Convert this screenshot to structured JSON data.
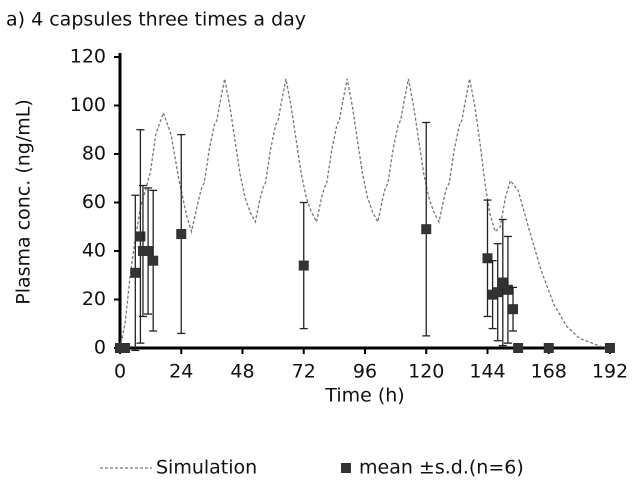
{
  "chart_data": {
    "type": "scatter",
    "title": "a) 4 capsules three times a day",
    "x_label": "Time (h)",
    "y_label": "Plasma conc. (ng/mL)",
    "xlim": [
      0,
      192
    ],
    "xticks": [
      0,
      24,
      48,
      72,
      96,
      120,
      144,
      168,
      192
    ],
    "ylim": [
      0,
      120
    ],
    "yticks": [
      0,
      20,
      40,
      60,
      80,
      100,
      120
    ],
    "grid": false,
    "series": [
      {
        "name": "Simulation",
        "kind": "line",
        "color": "#777777",
        "dashed": true,
        "x": [
          0,
          2,
          4,
          6,
          8,
          10,
          12,
          14,
          17,
          20,
          23,
          26,
          28,
          31,
          32,
          33,
          35,
          37,
          38,
          39,
          41,
          43,
          45,
          47,
          49,
          51,
          53,
          55,
          56,
          57,
          59,
          61,
          62,
          63,
          65,
          67,
          69,
          71,
          73,
          75,
          77,
          79,
          80,
          81,
          83,
          85,
          86,
          87,
          89,
          91,
          93,
          95,
          97,
          99,
          101,
          103,
          104,
          105,
          107,
          109,
          110,
          111,
          113,
          115,
          117,
          119,
          121,
          123,
          125,
          127,
          128,
          129,
          131,
          133,
          134,
          135,
          137,
          139,
          141,
          143,
          145,
          147,
          149,
          151,
          153,
          156,
          160,
          165,
          170,
          175,
          180,
          185,
          190
        ],
        "values": [
          0,
          10,
          30,
          45,
          58,
          65,
          73,
          88,
          97,
          88,
          70,
          55,
          48,
          62,
          66,
          68,
          82,
          92,
          94,
          100,
          111,
          100,
          86,
          72,
          62,
          56,
          52,
          62,
          66,
          68,
          82,
          92,
          94,
          100,
          111,
          100,
          86,
          72,
          62,
          56,
          52,
          62,
          66,
          68,
          82,
          92,
          94,
          100,
          111,
          100,
          86,
          72,
          62,
          56,
          52,
          62,
          66,
          68,
          82,
          92,
          94,
          100,
          111,
          100,
          86,
          72,
          62,
          56,
          52,
          62,
          66,
          68,
          82,
          92,
          94,
          100,
          111,
          100,
          85,
          68,
          55,
          48,
          50,
          62,
          69,
          65,
          50,
          32,
          18,
          9,
          4,
          2,
          0
        ]
      },
      {
        "name": "mean ±s.d.(n=6)",
        "kind": "points",
        "color": "#333333",
        "x": [
          0,
          1,
          2,
          6,
          8,
          9,
          11,
          13,
          24,
          72,
          120,
          144,
          146,
          148,
          150,
          152,
          154,
          156,
          168,
          192
        ],
        "values": [
          0,
          0,
          0,
          31,
          46,
          40,
          40,
          36,
          47,
          34,
          49,
          37,
          22,
          23,
          27,
          24,
          16,
          0,
          0,
          0
        ],
        "errors": [
          null,
          null,
          null,
          32,
          44,
          27,
          26,
          29,
          41,
          26,
          44,
          24,
          14,
          20,
          26,
          22,
          9,
          null,
          null,
          null
        ]
      }
    ]
  }
}
